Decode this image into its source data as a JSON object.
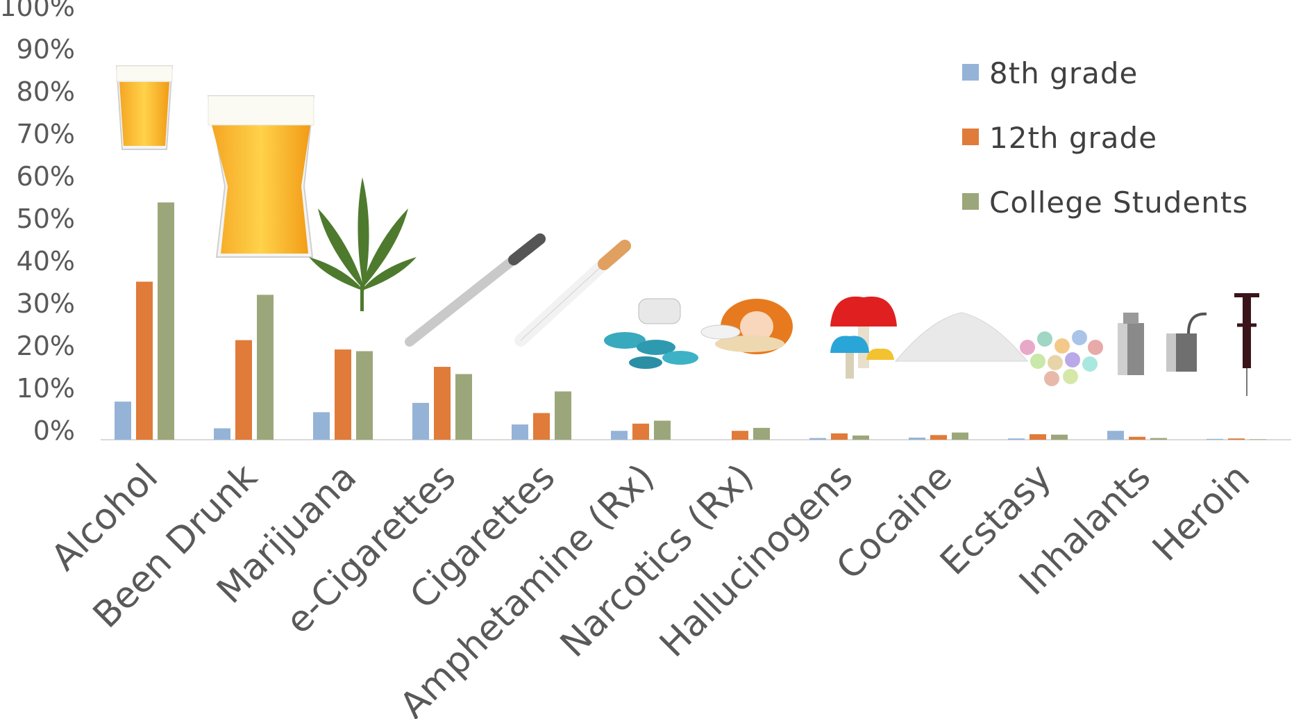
{
  "chart_data": {
    "type": "bar",
    "title": "",
    "xlabel": "",
    "ylabel": "",
    "ylim": [
      0,
      100
    ],
    "yticks": [
      "0%",
      "10%",
      "20%",
      "30%",
      "40%",
      "50%",
      "60%",
      "70%",
      "80%",
      "90%",
      "100%"
    ],
    "grid": false,
    "legend_position": "top-right",
    "categories": [
      "Alcohol",
      "Been Drunk",
      "Marijuana",
      "e-Cigarettes",
      "Cigarettes",
      "Amphetamine (Rx)",
      "Narcotics (Rx)",
      "Hallucinogens",
      "Cocaine",
      "Ecstasy",
      "Inhalants",
      "Heroin"
    ],
    "series": [
      {
        "name": "8th grade",
        "color": "#95B3D7",
        "values": [
          9.0,
          2.7,
          6.5,
          8.7,
          3.6,
          2.1,
          0,
          0.4,
          0.5,
          0.3,
          2.1,
          0.2
        ]
      },
      {
        "name": "12th grade",
        "color": "#E07B39",
        "values": [
          37.3,
          23.5,
          21.3,
          17.2,
          6.3,
          3.8,
          2.1,
          1.5,
          1.1,
          1.3,
          0.7,
          0.3
        ]
      },
      {
        "name": "College Students",
        "color": "#9BA77A",
        "values": [
          56.0,
          34.2,
          20.9,
          15.5,
          11.4,
          4.5,
          2.8,
          1.0,
          1.7,
          1.2,
          0.4,
          0.1
        ]
      }
    ],
    "icons": [
      "beer-glass-icon",
      "beer-pint-icon",
      "cannabis-leaf-icon",
      "e-cigarette-icon",
      "cigarette-icon",
      "pills-icon",
      "pill-bottle-icon",
      "mushroom-icon",
      "powder-icon",
      "ecstasy-tablets-icon",
      "spray-can-icon",
      "syringe-icon"
    ]
  }
}
